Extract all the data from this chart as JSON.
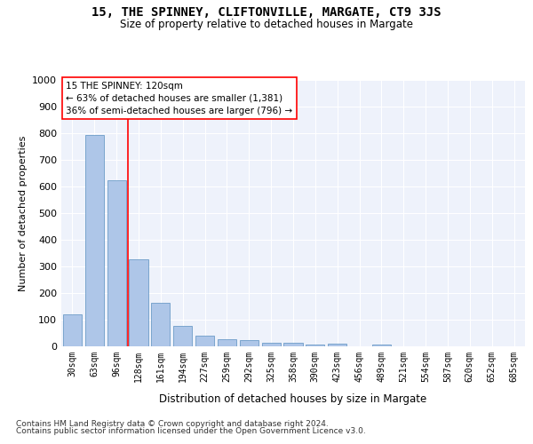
{
  "title": "15, THE SPINNEY, CLIFTONVILLE, MARGATE, CT9 3JS",
  "subtitle": "Size of property relative to detached houses in Margate",
  "xlabel": "Distribution of detached houses by size in Margate",
  "ylabel": "Number of detached properties",
  "bar_color": "#aec6e8",
  "bar_edge_color": "#5a8fc0",
  "background_color": "#eef2fb",
  "grid_color": "#ffffff",
  "categories": [
    "30sqm",
    "63sqm",
    "96sqm",
    "128sqm",
    "161sqm",
    "194sqm",
    "227sqm",
    "259sqm",
    "292sqm",
    "325sqm",
    "358sqm",
    "390sqm",
    "423sqm",
    "456sqm",
    "489sqm",
    "521sqm",
    "554sqm",
    "587sqm",
    "620sqm",
    "652sqm",
    "685sqm"
  ],
  "values": [
    120,
    795,
    622,
    327,
    162,
    78,
    40,
    27,
    23,
    15,
    15,
    8,
    10,
    0,
    8,
    0,
    0,
    0,
    0,
    0,
    0
  ],
  "annotation_line1": "15 THE SPINNEY: 120sqm",
  "annotation_line2": "← 63% of detached houses are smaller (1,381)",
  "annotation_line3": "36% of semi-detached houses are larger (796) →",
  "vline_x": 2.5,
  "ylim": [
    0,
    1000
  ],
  "yticks": [
    0,
    100,
    200,
    300,
    400,
    500,
    600,
    700,
    800,
    900,
    1000
  ],
  "footnote1": "Contains HM Land Registry data © Crown copyright and database right 2024.",
  "footnote2": "Contains public sector information licensed under the Open Government Licence v3.0."
}
